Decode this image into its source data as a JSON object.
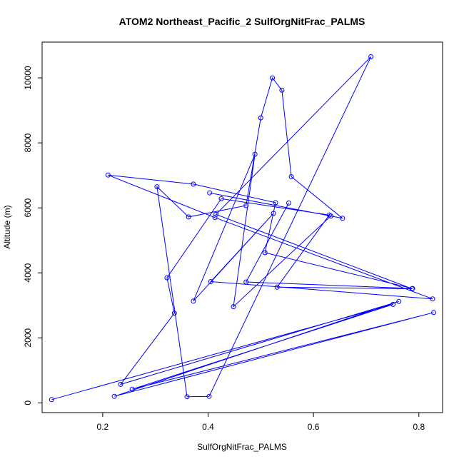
{
  "chart_data": {
    "type": "line",
    "title": "ATOM2 Northeast_Pacific_2 SulfOrgNitFrac_PALMS",
    "xlabel": "SulfOrgNitFrac_PALMS",
    "ylabel": "Altitude (m)",
    "xlim": [
      0.085,
      0.845
    ],
    "ylim": [
      -300,
      11100
    ],
    "xticks": [
      0.2,
      0.4,
      0.6,
      0.8
    ],
    "xtick_labels": [
      "0.2",
      "0.4",
      "0.6",
      "0.8"
    ],
    "yticks": [
      0,
      2000,
      4000,
      6000,
      8000,
      10000
    ],
    "ytick_labels": [
      "0",
      "2000",
      "4000",
      "6000",
      "8000",
      "10000"
    ],
    "grid": false,
    "color": "#0000ff",
    "series": [
      {
        "x": [
          0.103,
          0.751,
          0.256,
          0.828,
          0.222,
          0.762,
          0.234,
          0.336,
          0.322,
          0.425,
          0.63,
          0.531,
          0.787,
          0.415,
          0.709,
          0.402,
          0.36,
          0.303,
          0.363,
          0.472,
          0.5,
          0.522,
          0.54,
          0.558,
          0.655,
          0.403,
          0.633,
          0.448,
          0.489,
          0.372,
          0.524,
          0.405,
          0.826,
          0.413,
          0.21,
          0.372,
          0.528,
          0.508,
          0.788,
          0.472,
          0.553
        ],
        "y": [
          100,
          3030,
          420,
          2780,
          200,
          3120,
          570,
          2760,
          3850,
          6280,
          5780,
          3560,
          3510,
          5800,
          10650,
          200,
          190,
          6650,
          5720,
          6070,
          8770,
          10000,
          9620,
          6960,
          5680,
          6460,
          5750,
          2960,
          7650,
          3130,
          5830,
          3730,
          3200,
          5700,
          7010,
          6730,
          6160,
          4620,
          3520,
          3720,
          6150
        ]
      }
    ]
  }
}
